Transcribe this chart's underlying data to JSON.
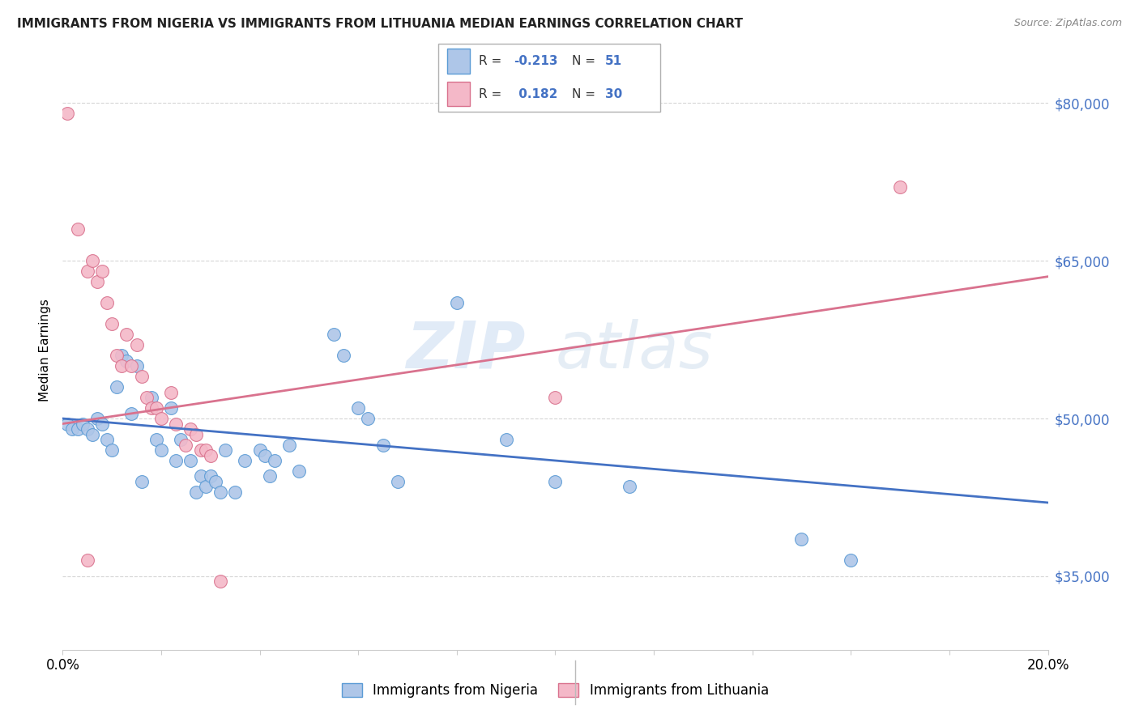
{
  "title": "IMMIGRANTS FROM NIGERIA VS IMMIGRANTS FROM LITHUANIA MEDIAN EARNINGS CORRELATION CHART",
  "source": "Source: ZipAtlas.com",
  "ylabel": "Median Earnings",
  "xlim": [
    0.0,
    0.2
  ],
  "ylim": [
    28000,
    85000
  ],
  "yticks": [
    35000,
    50000,
    65000,
    80000
  ],
  "ytick_labels": [
    "$35,000",
    "$50,000",
    "$65,000",
    "$80,000"
  ],
  "background_color": "#ffffff",
  "grid_color": "#cccccc",
  "watermark_zip": "ZIP",
  "watermark_atlas": "atlas",
  "nigeria_color": "#aec6e8",
  "nigeria_edge_color": "#5b9bd5",
  "lithuania_color": "#f4b8c8",
  "lithuania_edge_color": "#d9728e",
  "nigeria_line_color": "#4472c4",
  "lithuania_line_color": "#d9728e",
  "nigeria_scatter": [
    [
      0.001,
      49500
    ],
    [
      0.002,
      49000
    ],
    [
      0.003,
      49000
    ],
    [
      0.004,
      49500
    ],
    [
      0.005,
      49000
    ],
    [
      0.006,
      48500
    ],
    [
      0.007,
      50000
    ],
    [
      0.008,
      49500
    ],
    [
      0.009,
      48000
    ],
    [
      0.01,
      47000
    ],
    [
      0.011,
      53000
    ],
    [
      0.012,
      56000
    ],
    [
      0.013,
      55500
    ],
    [
      0.014,
      50500
    ],
    [
      0.015,
      55000
    ],
    [
      0.016,
      44000
    ],
    [
      0.018,
      52000
    ],
    [
      0.019,
      48000
    ],
    [
      0.02,
      47000
    ],
    [
      0.022,
      51000
    ],
    [
      0.023,
      46000
    ],
    [
      0.024,
      48000
    ],
    [
      0.026,
      46000
    ],
    [
      0.027,
      43000
    ],
    [
      0.028,
      44500
    ],
    [
      0.029,
      43500
    ],
    [
      0.03,
      44500
    ],
    [
      0.031,
      44000
    ],
    [
      0.032,
      43000
    ],
    [
      0.033,
      47000
    ],
    [
      0.035,
      43000
    ],
    [
      0.037,
      46000
    ],
    [
      0.04,
      47000
    ],
    [
      0.041,
      46500
    ],
    [
      0.042,
      44500
    ],
    [
      0.043,
      46000
    ],
    [
      0.046,
      47500
    ],
    [
      0.048,
      45000
    ],
    [
      0.055,
      58000
    ],
    [
      0.057,
      56000
    ],
    [
      0.06,
      51000
    ],
    [
      0.062,
      50000
    ],
    [
      0.065,
      47500
    ],
    [
      0.068,
      44000
    ],
    [
      0.08,
      61000
    ],
    [
      0.09,
      48000
    ],
    [
      0.1,
      44000
    ],
    [
      0.115,
      43500
    ],
    [
      0.15,
      38500
    ],
    [
      0.16,
      36500
    ]
  ],
  "lithuania_scatter": [
    [
      0.001,
      79000
    ],
    [
      0.003,
      68000
    ],
    [
      0.005,
      64000
    ],
    [
      0.006,
      65000
    ],
    [
      0.007,
      63000
    ],
    [
      0.008,
      64000
    ],
    [
      0.009,
      61000
    ],
    [
      0.01,
      59000
    ],
    [
      0.011,
      56000
    ],
    [
      0.012,
      55000
    ],
    [
      0.013,
      58000
    ],
    [
      0.014,
      55000
    ],
    [
      0.015,
      57000
    ],
    [
      0.016,
      54000
    ],
    [
      0.017,
      52000
    ],
    [
      0.018,
      51000
    ],
    [
      0.019,
      51000
    ],
    [
      0.02,
      50000
    ],
    [
      0.022,
      52500
    ],
    [
      0.023,
      49500
    ],
    [
      0.025,
      47500
    ],
    [
      0.026,
      49000
    ],
    [
      0.027,
      48500
    ],
    [
      0.028,
      47000
    ],
    [
      0.029,
      47000
    ],
    [
      0.03,
      46500
    ],
    [
      0.032,
      34500
    ],
    [
      0.1,
      52000
    ],
    [
      0.17,
      72000
    ],
    [
      0.005,
      36500
    ]
  ],
  "nigeria_trendline": [
    [
      0.0,
      50000
    ],
    [
      0.2,
      42000
    ]
  ],
  "lithuania_trendline": [
    [
      0.0,
      49500
    ],
    [
      0.2,
      63500
    ]
  ]
}
